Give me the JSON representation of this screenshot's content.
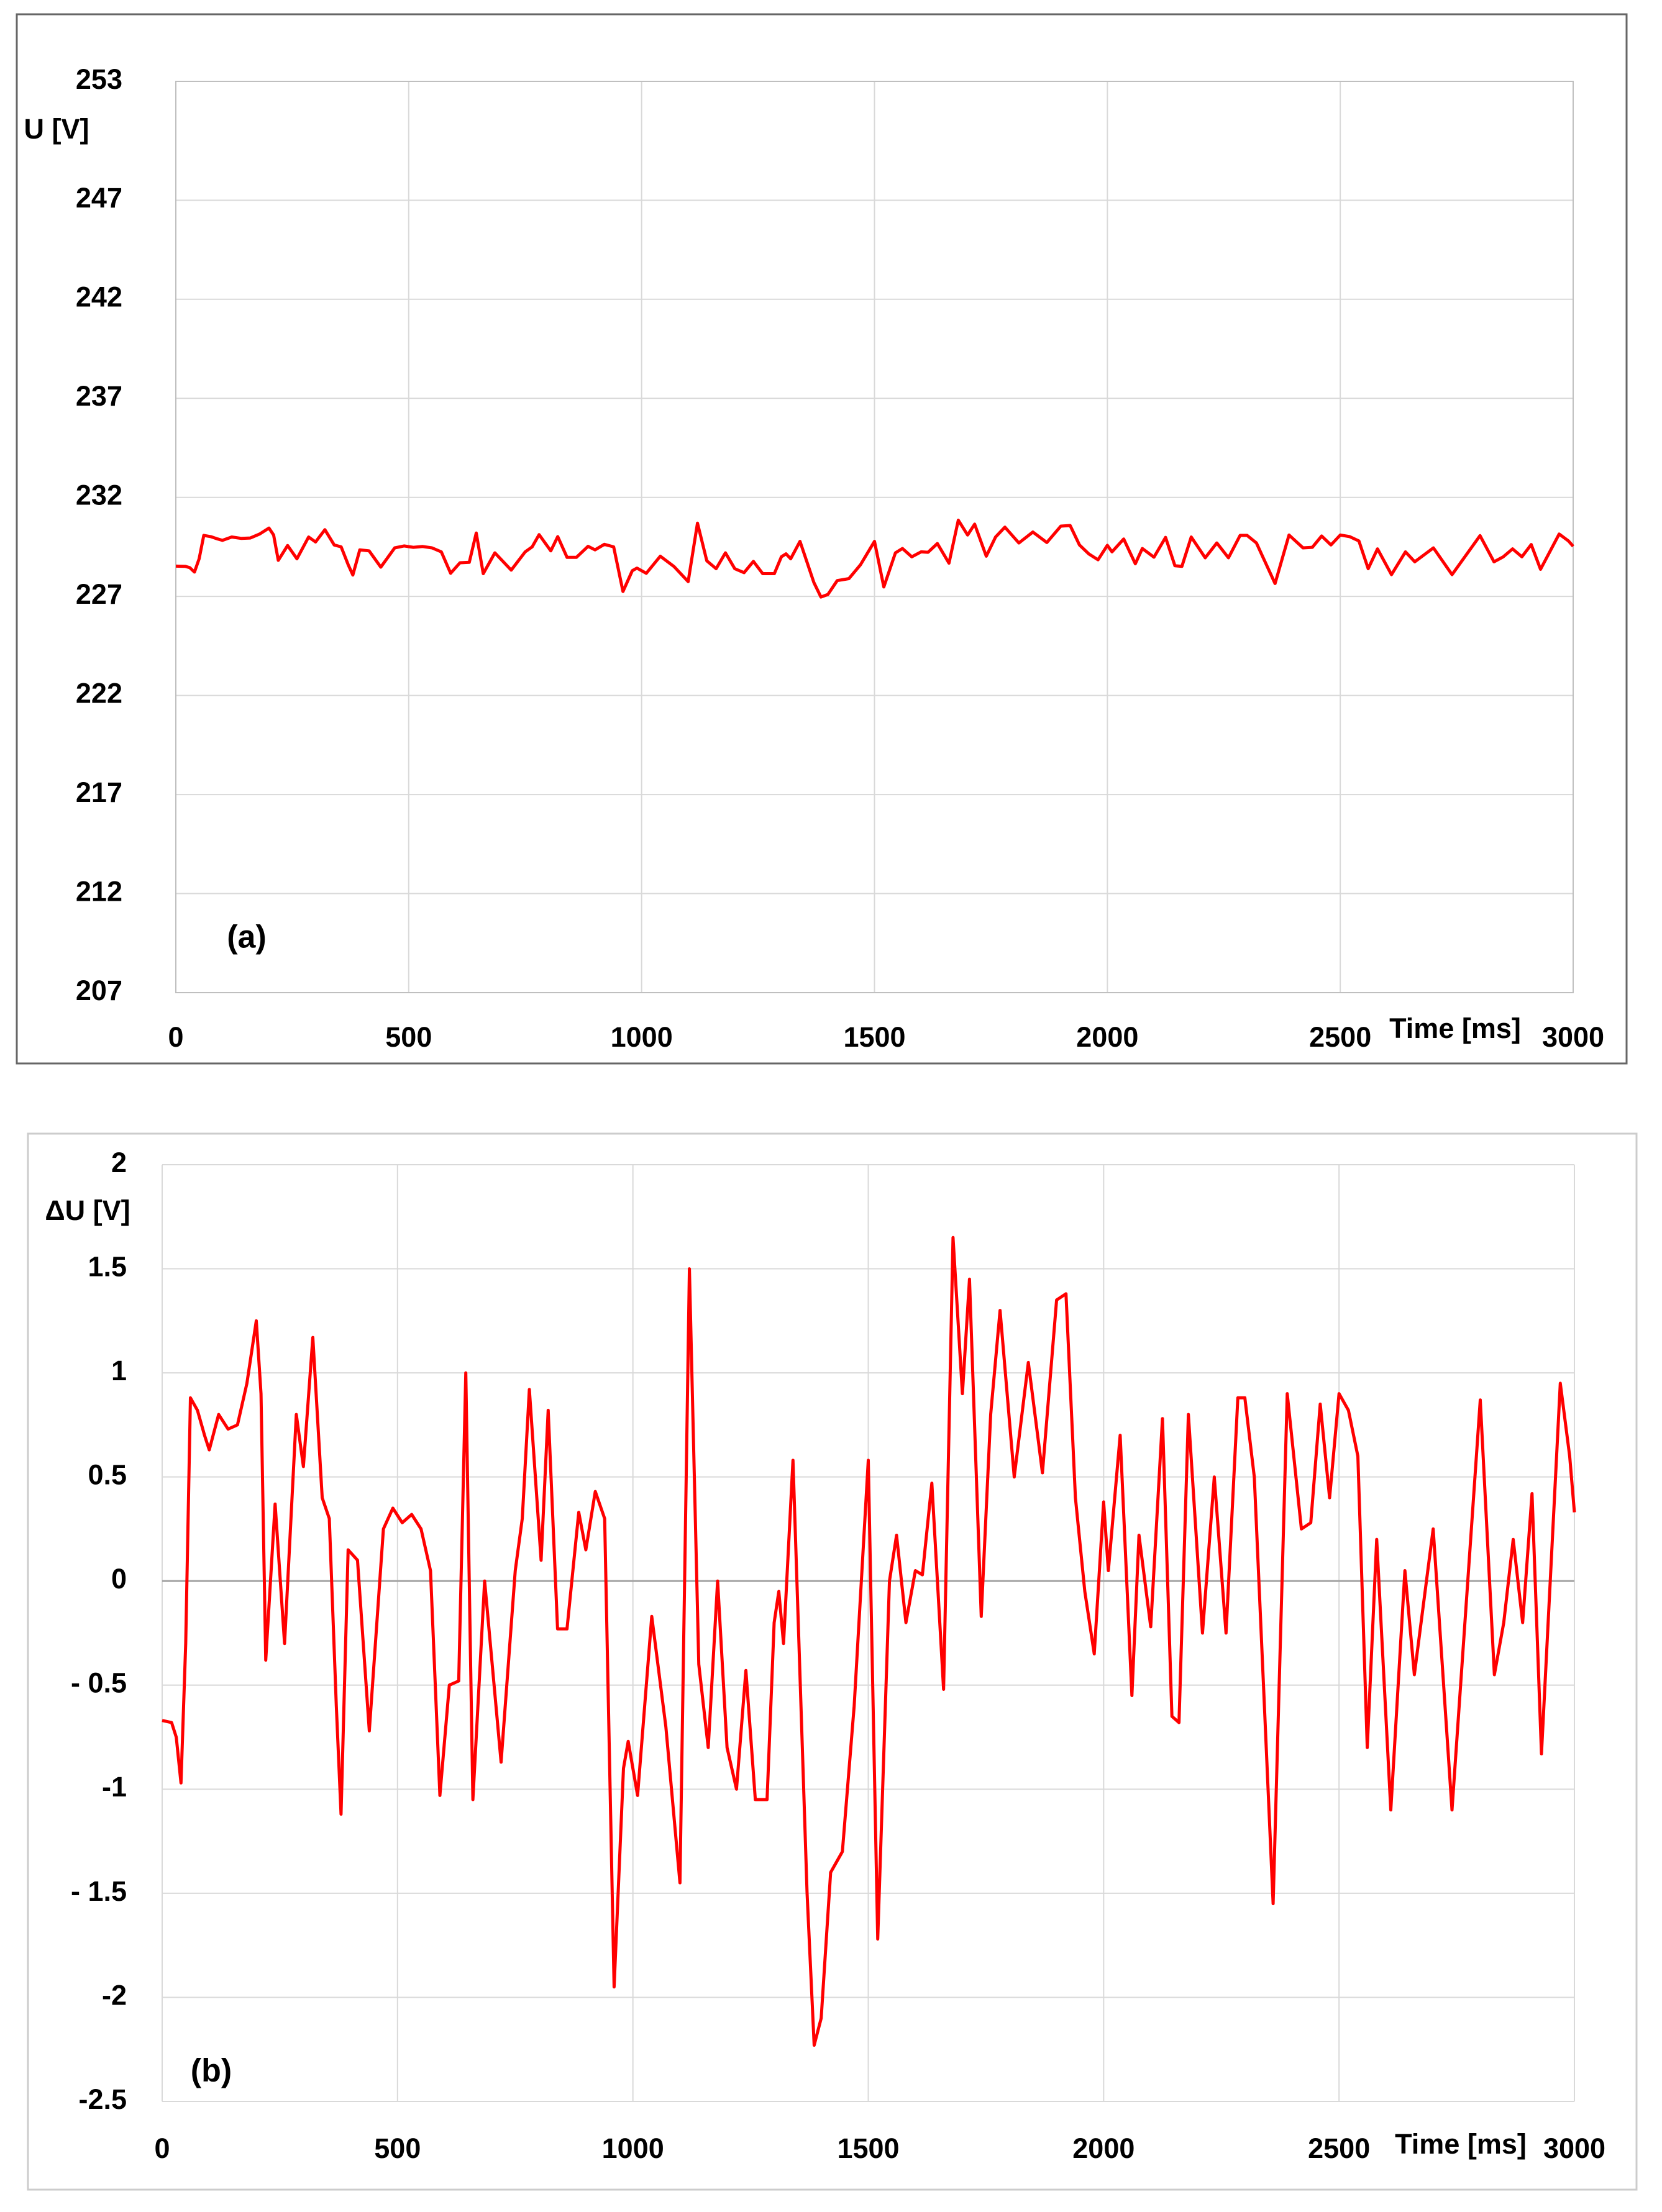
{
  "chart_data": [
    {
      "type": "line",
      "panel_label": "(a)",
      "y_label": "U [V]",
      "x_label": "Time [ms]",
      "xlim": [
        0,
        3000
      ],
      "xticks": [
        0,
        500,
        1000,
        1500,
        2000,
        2500,
        3000
      ],
      "ylim": [
        207,
        253
      ],
      "yticks": [
        207,
        212,
        217,
        222,
        227,
        232,
        237,
        242,
        247,
        253
      ],
      "grid": true,
      "x": [
        0,
        20,
        30,
        40,
        50,
        60,
        75,
        90,
        100,
        120,
        140,
        160,
        180,
        200,
        210,
        220,
        240,
        260,
        285,
        300,
        320,
        340,
        355,
        370,
        380,
        395,
        415,
        440,
        470,
        490,
        510,
        530,
        550,
        570,
        590,
        610,
        630,
        645,
        660,
        685,
        720,
        750,
        765,
        780,
        805,
        820,
        840,
        860,
        885,
        900,
        920,
        940,
        960,
        980,
        990,
        1010,
        1040,
        1070,
        1100,
        1120,
        1140,
        1160,
        1180,
        1200,
        1220,
        1240,
        1260,
        1285,
        1300,
        1310,
        1320,
        1340,
        1370,
        1385,
        1400,
        1420,
        1445,
        1470,
        1500,
        1520,
        1545,
        1560,
        1580,
        1600,
        1615,
        1635,
        1660,
        1680,
        1700,
        1715,
        1740,
        1760,
        1780,
        1810,
        1840,
        1870,
        1900,
        1920,
        1940,
        1960,
        1980,
        2000,
        2010,
        2035,
        2060,
        2075,
        2100,
        2125,
        2145,
        2160,
        2180,
        2210,
        2235,
        2260,
        2285,
        2300,
        2320,
        2360,
        2390,
        2420,
        2440,
        2460,
        2480,
        2500,
        2520,
        2540,
        2560,
        2580,
        2610,
        2640,
        2660,
        2700,
        2740,
        2800,
        2830,
        2850,
        2870,
        2890,
        2910,
        2930,
        2970,
        2990,
        3000
      ],
      "series": [
        {
          "name": "U",
          "color": "#ff0000",
          "values": [
            228.53,
            228.52,
            228.45,
            228.23,
            228.9,
            230.08,
            230.02,
            229.9,
            229.83,
            230.0,
            229.93,
            229.95,
            230.15,
            230.45,
            230.1,
            228.82,
            229.57,
            228.9,
            230.0,
            229.75,
            230.37,
            229.6,
            229.5,
            228.6,
            228.08,
            229.35,
            229.3,
            228.48,
            229.45,
            229.55,
            229.48,
            229.52,
            229.45,
            229.25,
            228.17,
            228.7,
            228.72,
            230.2,
            228.15,
            229.2,
            228.33,
            229.25,
            229.5,
            230.12,
            229.3,
            230.02,
            228.97,
            228.97,
            229.53,
            229.35,
            229.63,
            229.5,
            227.25,
            228.3,
            228.43,
            228.17,
            229.03,
            228.5,
            227.75,
            230.7,
            228.8,
            228.4,
            229.2,
            228.4,
            228.2,
            228.77,
            228.15,
            228.15,
            229.0,
            229.15,
            228.9,
            229.78,
            227.7,
            226.97,
            227.1,
            227.8,
            227.9,
            228.6,
            229.78,
            227.48,
            229.2,
            229.42,
            229.0,
            229.25,
            229.23,
            229.67,
            228.68,
            230.85,
            230.1,
            230.65,
            229.03,
            230.0,
            230.5,
            229.7,
            230.25,
            229.72,
            230.55,
            230.58,
            229.6,
            229.15,
            228.85,
            229.58,
            229.25,
            229.9,
            228.65,
            229.42,
            228.98,
            229.98,
            228.55,
            228.52,
            230.0,
            228.95,
            229.7,
            228.95,
            230.08,
            230.08,
            229.7,
            227.65,
            230.1,
            229.45,
            229.48,
            230.05,
            229.6,
            230.1,
            230.02,
            229.8,
            228.4,
            229.4,
            228.1,
            229.25,
            228.75,
            229.45,
            228.1,
            230.07,
            228.75,
            229.0,
            229.4,
            229.0,
            229.62,
            228.37,
            230.15,
            229.8,
            229.53
          ]
        }
      ]
    },
    {
      "type": "line",
      "panel_label": "(b)",
      "y_label": "ΔU [V]",
      "x_label": "Time [ms]",
      "xlim": [
        0,
        3000
      ],
      "xticks": [
        0,
        500,
        1000,
        1500,
        2000,
        2500,
        3000
      ],
      "ylim": [
        -2.5,
        2
      ],
      "yticks": [
        -2.5,
        -2,
        {
          "value": -1.5,
          "label": "- 1.5"
        },
        -1,
        {
          "value": -0.5,
          "label": "- 0.5"
        },
        0,
        0.5,
        1,
        1.5,
        2
      ],
      "grid": true,
      "zero_line": true,
      "x": [
        0,
        20,
        30,
        40,
        50,
        60,
        75,
        90,
        100,
        120,
        140,
        160,
        180,
        200,
        210,
        220,
        240,
        260,
        285,
        300,
        320,
        340,
        355,
        370,
        380,
        395,
        415,
        440,
        470,
        490,
        510,
        530,
        550,
        570,
        590,
        610,
        630,
        645,
        660,
        685,
        720,
        750,
        765,
        780,
        805,
        820,
        840,
        860,
        885,
        900,
        920,
        940,
        960,
        980,
        990,
        1010,
        1040,
        1070,
        1100,
        1120,
        1140,
        1160,
        1180,
        1200,
        1220,
        1240,
        1260,
        1285,
        1300,
        1310,
        1320,
        1340,
        1370,
        1385,
        1400,
        1420,
        1445,
        1470,
        1500,
        1520,
        1545,
        1560,
        1580,
        1600,
        1615,
        1635,
        1660,
        1680,
        1700,
        1715,
        1740,
        1760,
        1780,
        1810,
        1840,
        1870,
        1900,
        1920,
        1940,
        1960,
        1980,
        2000,
        2010,
        2035,
        2060,
        2075,
        2100,
        2125,
        2145,
        2160,
        2180,
        2210,
        2235,
        2260,
        2285,
        2300,
        2320,
        2360,
        2390,
        2420,
        2440,
        2460,
        2480,
        2500,
        2520,
        2540,
        2560,
        2580,
        2610,
        2640,
        2660,
        2700,
        2740,
        2800,
        2830,
        2850,
        2870,
        2890,
        2910,
        2930,
        2970,
        2990,
        3000
      ],
      "series": [
        {
          "name": "ΔU",
          "color": "#ff0000",
          "values": [
            -0.67,
            -0.68,
            -0.75,
            -0.97,
            -0.3,
            0.88,
            0.82,
            0.7,
            0.63,
            0.8,
            0.73,
            0.75,
            0.95,
            1.25,
            0.9,
            -0.38,
            0.37,
            -0.3,
            0.8,
            0.55,
            1.17,
            0.4,
            0.3,
            -0.6,
            -1.12,
            0.15,
            0.1,
            -0.72,
            0.25,
            0.35,
            0.28,
            0.32,
            0.25,
            0.05,
            -1.03,
            -0.5,
            -0.48,
            1.0,
            -1.05,
            0,
            -0.87,
            0.05,
            0.3,
            0.92,
            0.1,
            0.82,
            -0.23,
            -0.23,
            0.33,
            0.15,
            0.43,
            0.3,
            -1.95,
            -0.9,
            -0.77,
            -1.03,
            -0.17,
            -0.7,
            -1.45,
            1.5,
            -0.4,
            -0.8,
            0,
            -0.8,
            -1.0,
            -0.43,
            -1.05,
            -1.05,
            -0.2,
            -0.05,
            -0.3,
            0.58,
            -1.5,
            -2.23,
            -2.1,
            -1.4,
            -1.3,
            -0.6,
            0.58,
            -1.72,
            0,
            0.22,
            -0.2,
            0.05,
            0.03,
            0.47,
            -0.52,
            1.65,
            0.9,
            1.45,
            -0.17,
            0.8,
            1.3,
            0.5,
            1.05,
            0.52,
            1.35,
            1.38,
            0.4,
            -0.05,
            -0.35,
            0.38,
            0.05,
            0.7,
            -0.55,
            0.22,
            -0.22,
            0.78,
            -0.65,
            -0.68,
            0.8,
            -0.25,
            0.5,
            -0.25,
            0.88,
            0.88,
            0.5,
            -1.55,
            0.9,
            0.25,
            0.28,
            0.85,
            0.4,
            0.9,
            0.82,
            0.6,
            -0.8,
            0.2,
            -1.1,
            0.05,
            -0.45,
            0.25,
            -1.1,
            0.87,
            -0.45,
            -0.2,
            0.2,
            -0.2,
            0.42,
            -0.83,
            0.95,
            0.6,
            0.33
          ]
        }
      ]
    }
  ]
}
